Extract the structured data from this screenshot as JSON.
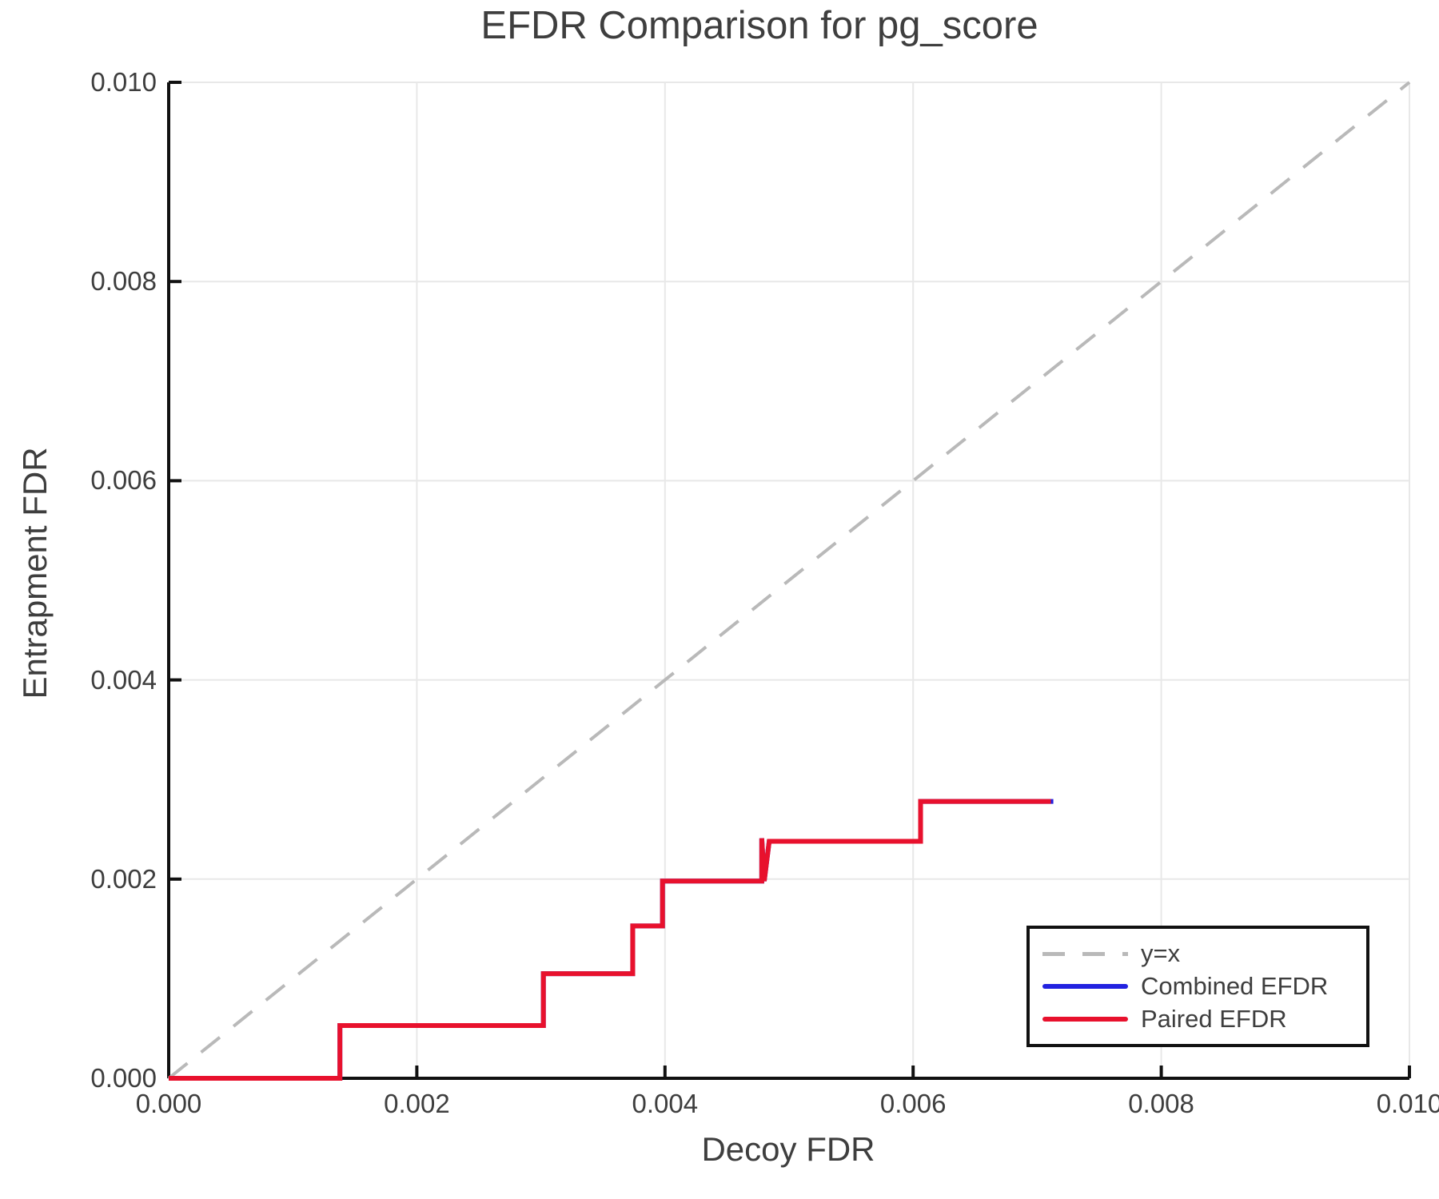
{
  "title": "EFDR Comparison for pg_score",
  "axes": {
    "xlabel": "Decoy FDR",
    "ylabel": "Entrapment FDR"
  },
  "legend": {
    "items": [
      {
        "label": "y=x",
        "style": "dashed",
        "color": "#b9b9b9"
      },
      {
        "label": "Combined EFDR",
        "style": "solid",
        "color": "#2222e0"
      },
      {
        "label": "Paired EFDR",
        "style": "solid",
        "color": "#e8112d"
      }
    ]
  },
  "colors": {
    "identity_line": "#b9b9b9",
    "combined_line": "#2222e0",
    "paired_line": "#e8112d",
    "gridline": "#e8e8e8",
    "axis": "#111111",
    "text": "#3e3e3e"
  },
  "chart_data": {
    "type": "line",
    "title": "EFDR Comparison for pg_score",
    "xlabel": "Decoy FDR",
    "ylabel": "Entrapment FDR",
    "xlim": [
      0.0,
      0.01
    ],
    "ylim": [
      0.0,
      0.01
    ],
    "x_ticks": [
      "0.000",
      "0.002",
      "0.004",
      "0.006",
      "0.008",
      "0.010"
    ],
    "y_ticks": [
      "0.000",
      "0.002",
      "0.004",
      "0.006",
      "0.008",
      "0.010"
    ],
    "grid": true,
    "legend_position": "lower right",
    "series": [
      {
        "name": "y=x",
        "style": "dashed",
        "color": "#b9b9b9",
        "points": [
          [
            0.0,
            0.0
          ],
          [
            0.01,
            0.01
          ]
        ]
      },
      {
        "name": "Combined EFDR",
        "style": "solid",
        "color": "#2222e0",
        "points": [
          [
            0.0,
            0.0
          ],
          [
            0.00138,
            0.0
          ],
          [
            0.00138,
            0.00053
          ],
          [
            0.00302,
            0.00053
          ],
          [
            0.00302,
            0.00105
          ],
          [
            0.00374,
            0.00105
          ],
          [
            0.00374,
            0.00153
          ],
          [
            0.00398,
            0.00153
          ],
          [
            0.00398,
            0.00198
          ],
          [
            0.00478,
            0.00198
          ],
          [
            0.00478,
            0.00241
          ],
          [
            0.0048,
            0.00198
          ],
          [
            0.00484,
            0.00238
          ],
          [
            0.00606,
            0.00238
          ],
          [
            0.00606,
            0.00278
          ],
          [
            0.00713,
            0.00278
          ]
        ]
      },
      {
        "name": "Paired EFDR",
        "style": "solid",
        "color": "#e8112d",
        "points": [
          [
            0.0,
            0.0
          ],
          [
            0.00138,
            0.0
          ],
          [
            0.00138,
            0.00053
          ],
          [
            0.00302,
            0.00053
          ],
          [
            0.00302,
            0.00105
          ],
          [
            0.00374,
            0.00105
          ],
          [
            0.00374,
            0.00153
          ],
          [
            0.00398,
            0.00153
          ],
          [
            0.00398,
            0.00198
          ],
          [
            0.00478,
            0.00198
          ],
          [
            0.00478,
            0.00241
          ],
          [
            0.0048,
            0.00198
          ],
          [
            0.00484,
            0.00238
          ],
          [
            0.00606,
            0.00238
          ],
          [
            0.00606,
            0.00278
          ],
          [
            0.00711,
            0.00278
          ]
        ]
      }
    ]
  }
}
